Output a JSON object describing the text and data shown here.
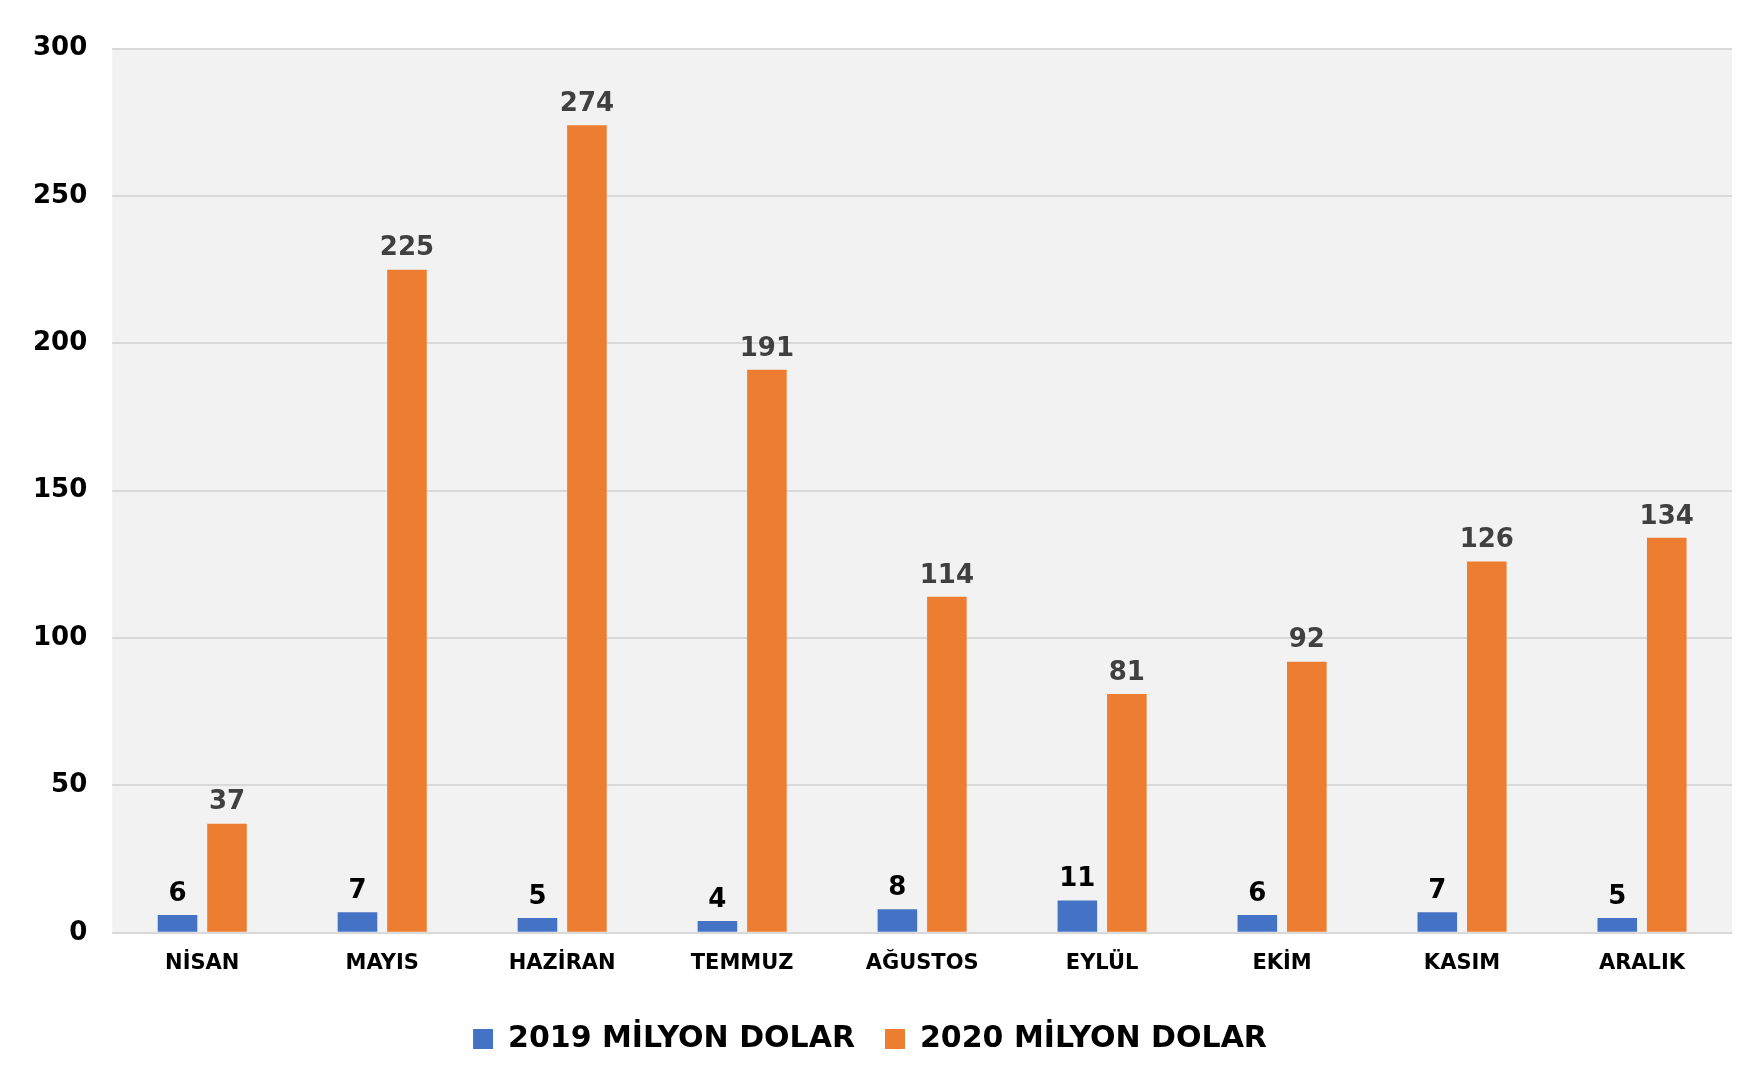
{
  "chart_data": {
    "type": "bar",
    "categories": [
      "NİSAN",
      "MAYIS",
      "HAZİRAN",
      "TEMMUZ",
      "AĞUSTOS",
      "EYLÜL",
      "EKİM",
      "KASIM",
      "ARALIK"
    ],
    "series": [
      {
        "name": "2019 MİLYON DOLAR",
        "color": "#4472c4",
        "values": [
          6,
          7,
          5,
          4,
          8,
          11,
          6,
          7,
          5
        ]
      },
      {
        "name": "2020 MİLYON DOLAR",
        "color": "#ed7d31",
        "values": [
          37,
          225,
          274,
          191,
          114,
          81,
          92,
          126,
          134
        ]
      }
    ],
    "ylim": [
      0,
      300
    ],
    "yticks": [
      0,
      50,
      100,
      150,
      200,
      250,
      300
    ],
    "grid": "y",
    "legend": "bottom",
    "data_labels": true
  }
}
